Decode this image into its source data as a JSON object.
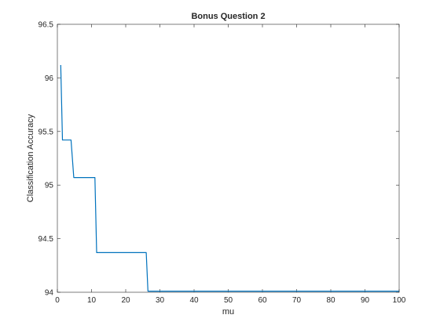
{
  "chart_data": {
    "type": "line",
    "title": "Bonus Question 2",
    "xlabel": "mu",
    "ylabel": "Classification Accuracy",
    "xlim": [
      0,
      100
    ],
    "ylim": [
      94,
      96.5
    ],
    "xticks": [
      0,
      10,
      20,
      30,
      40,
      50,
      60,
      70,
      80,
      90,
      100
    ],
    "yticks": [
      94,
      94.5,
      95,
      95.5,
      96,
      96.5
    ],
    "xtick_labels": [
      "0",
      "10",
      "20",
      "30",
      "40",
      "50",
      "60",
      "70",
      "80",
      "90",
      "100"
    ],
    "ytick_labels": [
      "94",
      "94.5",
      "95",
      "95.5",
      "96",
      "96.5"
    ],
    "grid": false,
    "box": true,
    "line_color": "#0072BD",
    "series": [
      {
        "x": [
          1,
          1.5,
          2,
          3,
          4,
          4.8,
          5,
          10,
          11,
          11.5,
          12,
          20,
          26,
          26.5,
          27,
          30,
          40,
          50,
          60,
          70,
          80,
          90,
          100
        ],
        "y": [
          96.12,
          95.42,
          95.42,
          95.42,
          95.42,
          95.07,
          95.07,
          95.07,
          95.07,
          94.37,
          94.37,
          94.37,
          94.37,
          94.01,
          94.01,
          94.01,
          94.01,
          94.01,
          94.01,
          94.01,
          94.01,
          94.01,
          94.01
        ]
      }
    ]
  }
}
